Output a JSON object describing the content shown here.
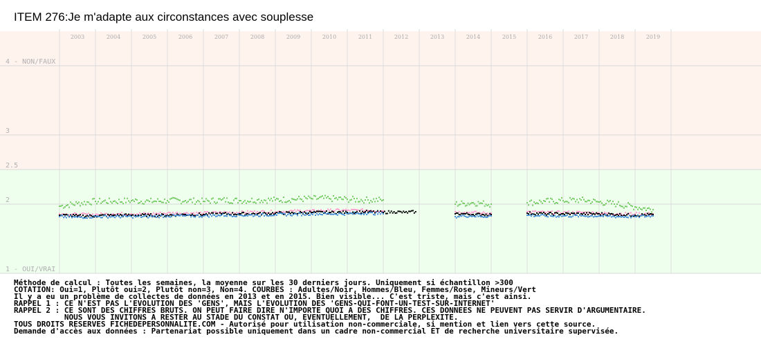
{
  "chart_data": {
    "type": "scatter",
    "title": "ITEM 276:Je m'adapte aux circonstances avec souplesse",
    "xlabel": "",
    "ylabel": "",
    "x_years": [
      "2003",
      "2004",
      "2005",
      "2006",
      "2007",
      "2008",
      "2009",
      "2010",
      "2011",
      "2012",
      "2013",
      "2014",
      "2015",
      "2016",
      "2017",
      "2018",
      "2019"
    ],
    "y_ticks": [
      {
        "value": 4,
        "label": "4 - NON/FAUX"
      },
      {
        "value": 3,
        "label": "3"
      },
      {
        "value": 2.5,
        "label": "2.5"
      },
      {
        "value": 2,
        "label": "2"
      },
      {
        "value": 1,
        "label": "1 - OUI/VRAI"
      }
    ],
    "ylim": [
      1,
      4.5
    ],
    "grid": true,
    "bands": [
      {
        "from": 2.5,
        "to": 4.5,
        "color": "#fff3ee"
      },
      {
        "from": 1,
        "to": 2.5,
        "color": "#eeffee"
      }
    ],
    "colors": {
      "adultes": "#000000",
      "hommes": "#4a90d9",
      "femmes": "#ff9ecf",
      "mineurs": "#77cc66"
    },
    "series": [
      {
        "key": "mineurs",
        "segments": [
          {
            "x": [
              2003.0,
              2003.5,
              2004.0,
              2004.5,
              2005.0,
              2005.5,
              2006.0,
              2006.5,
              2007.0,
              2007.5,
              2008.0,
              2008.5,
              2009.0,
              2009.5,
              2010.0,
              2010.5,
              2011.0,
              2011.5,
              2012.0
            ],
            "y": [
              1.97,
              2.01,
              2.04,
              2.04,
              2.05,
              2.04,
              2.05,
              2.05,
              2.04,
              2.06,
              2.05,
              2.06,
              2.06,
              2.07,
              2.08,
              2.08,
              2.07,
              2.06,
              2.06
            ]
          },
          {
            "x": [
              2014.0,
              2014.25,
              2014.5,
              2014.75,
              2015.0
            ],
            "y": [
              2.0,
              2.01,
              2.02,
              2.01,
              2.0
            ]
          },
          {
            "x": [
              2016.0,
              2016.5,
              2017.0,
              2017.5,
              2018.0,
              2018.5,
              2019.0,
              2019.5
            ],
            "y": [
              2.02,
              2.04,
              2.05,
              2.06,
              2.03,
              2.0,
              1.96,
              1.92
            ]
          }
        ]
      },
      {
        "key": "femmes",
        "segments": [
          {
            "x": [
              2003.0,
              2003.5,
              2004.0,
              2004.5,
              2005.0,
              2005.5,
              2006.0,
              2006.5,
              2007.0,
              2007.5,
              2008.0,
              2008.5,
              2009.0,
              2009.5,
              2010.0,
              2010.5,
              2011.0,
              2011.5,
              2012.0
            ],
            "y": [
              1.86,
              1.85,
              1.85,
              1.86,
              1.86,
              1.86,
              1.87,
              1.87,
              1.87,
              1.88,
              1.88,
              1.89,
              1.89,
              1.9,
              1.9,
              1.91,
              1.91,
              1.91,
              1.9
            ]
          },
          {
            "x": [
              2014.0,
              2014.25,
              2014.5,
              2014.75,
              2015.0
            ],
            "y": [
              1.89,
              1.88,
              1.88,
              1.87,
              1.87
            ]
          },
          {
            "x": [
              2016.0,
              2016.5,
              2017.0,
              2017.5,
              2018.0,
              2018.5,
              2019.0,
              2019.5
            ],
            "y": [
              1.89,
              1.88,
              1.88,
              1.88,
              1.87,
              1.86,
              1.86,
              1.86
            ]
          }
        ]
      },
      {
        "key": "adultes",
        "segments": [
          {
            "x": [
              2003.0,
              2003.5,
              2004.0,
              2004.5,
              2005.0,
              2005.5,
              2006.0,
              2006.5,
              2007.0,
              2007.5,
              2008.0,
              2008.5,
              2009.0,
              2009.5,
              2010.0,
              2010.5,
              2011.0,
              2011.5,
              2012.0,
              2012.3,
              2012.6,
              2012.9
            ],
            "y": [
              1.84,
              1.83,
              1.83,
              1.84,
              1.84,
              1.84,
              1.84,
              1.85,
              1.85,
              1.86,
              1.86,
              1.86,
              1.87,
              1.87,
              1.88,
              1.88,
              1.88,
              1.89,
              1.88,
              1.89,
              1.88,
              1.89
            ]
          },
          {
            "x": [
              2014.0,
              2014.25,
              2014.5,
              2014.75,
              2015.0
            ],
            "y": [
              1.86,
              1.86,
              1.85,
              1.85,
              1.85
            ]
          },
          {
            "x": [
              2016.0,
              2016.5,
              2017.0,
              2017.5,
              2018.0,
              2018.5,
              2019.0,
              2019.5
            ],
            "y": [
              1.87,
              1.86,
              1.86,
              1.86,
              1.86,
              1.85,
              1.84,
              1.85
            ]
          }
        ]
      },
      {
        "key": "hommes",
        "segments": [
          {
            "x": [
              2003.0,
              2003.5,
              2004.0,
              2004.5,
              2005.0,
              2005.5,
              2006.0,
              2006.5,
              2007.0,
              2007.5,
              2008.0,
              2008.5,
              2009.0,
              2009.5,
              2010.0,
              2010.5,
              2011.0,
              2011.5,
              2012.0
            ],
            "y": [
              1.82,
              1.81,
              1.82,
              1.82,
              1.82,
              1.82,
              1.83,
              1.83,
              1.83,
              1.84,
              1.84,
              1.84,
              1.85,
              1.85,
              1.86,
              1.86,
              1.86,
              1.87,
              1.86
            ]
          },
          {
            "x": [
              2014.0,
              2014.25,
              2014.5,
              2014.75,
              2015.0
            ],
            "y": [
              1.82,
              1.83,
              1.83,
              1.82,
              1.83
            ]
          },
          {
            "x": [
              2016.0,
              2016.5,
              2017.0,
              2017.5,
              2018.0,
              2018.5,
              2019.0,
              2019.5
            ],
            "y": [
              1.84,
              1.83,
              1.83,
              1.83,
              1.83,
              1.82,
              1.82,
              1.83
            ]
          }
        ]
      }
    ]
  },
  "notes": [
    "Méthode de calcul : Toutes les semaines, la moyenne sur les 30 derniers jours. Uniquement si échantillon >300",
    "COTATION: Oui=1, Plutôt oui=2, Plutôt non=3, Non=4. COURBES : Adultes/Noir, Hommes/Bleu, Femmes/Rose, Mineurs/Vert",
    "Il y a eu un problème de collectes de données en 2013 et en 2015. Bien visible... C'est triste, mais c'est ainsi.",
    "RAPPEL 1 : CE N'EST PAS L'EVOLUTION DES 'GENS', MAIS L'EVOLUTION DES 'GENS-QUI-FONT-UN-TEST-SUR-INTERNET'",
    "RAPPEL 2 : CE SONT DES CHIFFRES BRUTS. ON PEUT FAIRE DIRE N'IMPORTE QUOI A DES CHIFFRES. CES DONNEES NE PEUVENT PAS SERVIR D'ARGUMENTAIRE.",
    "           NOUS VOUS INVITONS A RESTER AU STADE DU CONSTAT OU, EVENTUELLEMENT,  DE LA PERPLEXITE.",
    "TOUS DROITS RESERVES FICHEDEPERSONNALITE.COM - Autorisé pour utilisation non-commerciale, si mention et lien vers cette source.",
    "Demande d'accès aux données : Partenariat possible uniquement dans un cadre non-commercial ET de recherche universitaire supervisée."
  ]
}
